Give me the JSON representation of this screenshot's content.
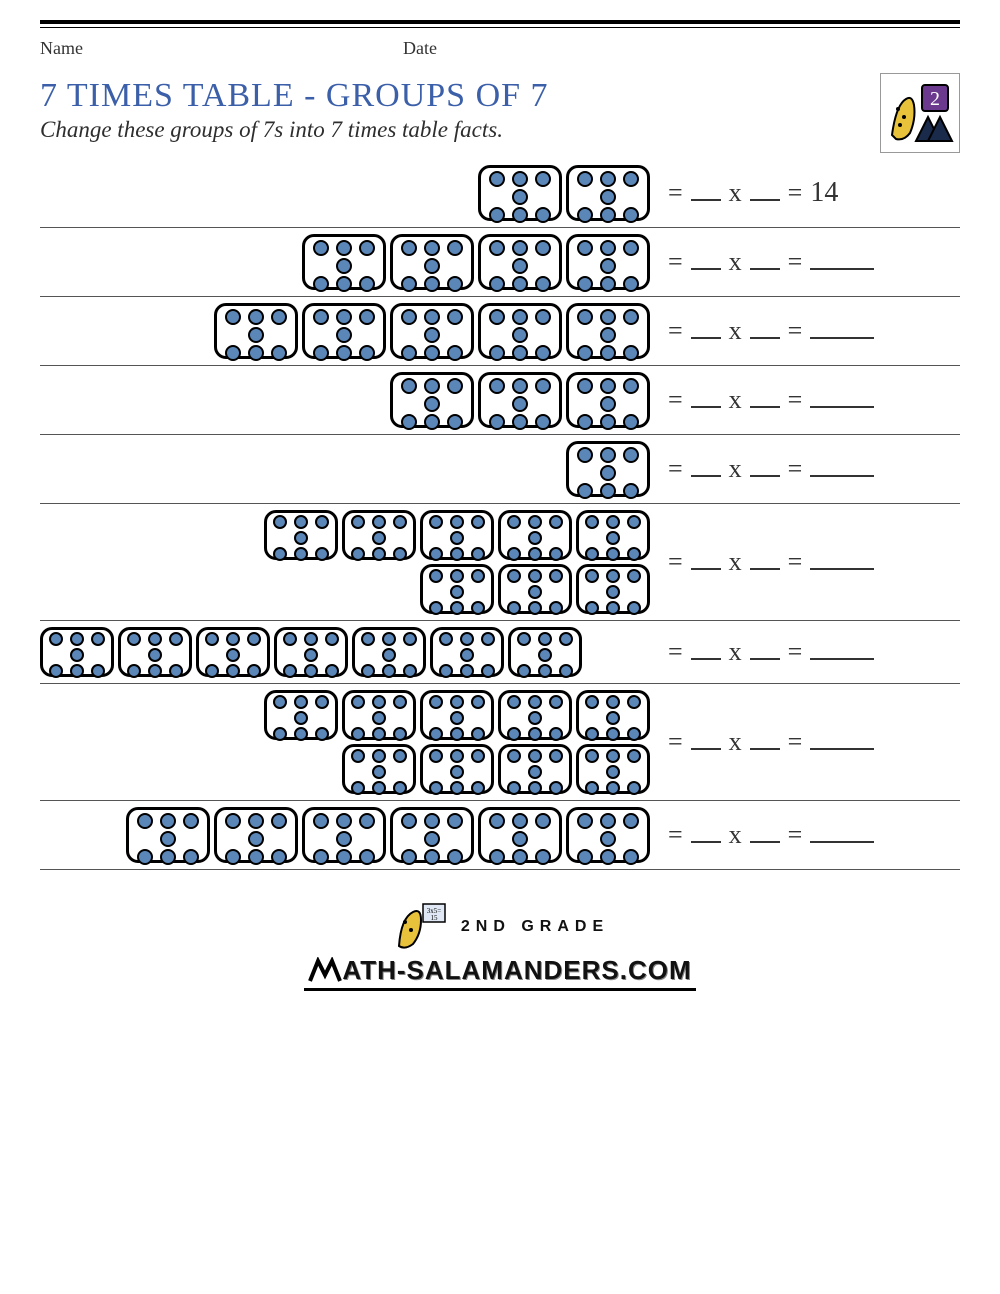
{
  "header": {
    "name_label": "Name",
    "date_label": "Date",
    "title": "7 TIMES TABLE - GROUPS OF 7",
    "subtitle": "Change these groups of 7s into 7 times table facts.",
    "grade_badge": "2"
  },
  "style": {
    "title_color": "#3b5fa8",
    "dot_fill": "#5b86b8",
    "dot_stroke": "#000000",
    "tile_border": "#000000",
    "rule_color": "#555555",
    "badge_bg": "#6b3a8f",
    "badge_text": "#ffffff"
  },
  "equation": {
    "eq": "=",
    "times": "x"
  },
  "problems": [
    {
      "tile_count": 2,
      "answer": "14",
      "layout": "single"
    },
    {
      "tile_count": 4,
      "answer": "",
      "layout": "single"
    },
    {
      "tile_count": 5,
      "answer": "",
      "layout": "single"
    },
    {
      "tile_count": 3,
      "answer": "",
      "layout": "single"
    },
    {
      "tile_count": 1,
      "answer": "",
      "layout": "single"
    },
    {
      "tile_count": 8,
      "answer": "",
      "layout": "wrap2"
    },
    {
      "tile_count": 7,
      "answer": "",
      "layout": "wide"
    },
    {
      "tile_count": 9,
      "answer": "",
      "layout": "wrap2"
    },
    {
      "tile_count": 6,
      "answer": "",
      "layout": "single"
    }
  ],
  "footer": {
    "grade_line": "2ND GRADE",
    "url_line": "ATH-SALAMANDERS.COM",
    "url_prefix_glyph": "M"
  }
}
